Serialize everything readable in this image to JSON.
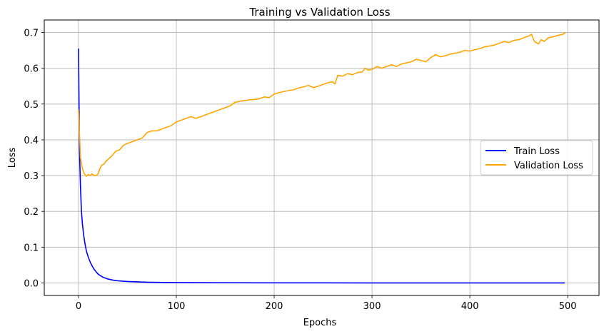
{
  "chart_data": {
    "type": "line",
    "title": "Training vs Validation Loss",
    "xlabel": "Epochs",
    "ylabel": "Loss",
    "xlim": [
      -35,
      532
    ],
    "ylim": [
      -0.035,
      0.735
    ],
    "xticks": [
      0,
      100,
      200,
      300,
      400,
      500
    ],
    "yticks": [
      0.0,
      0.1,
      0.2,
      0.3,
      0.4,
      0.5,
      0.6,
      0.7
    ],
    "grid": true,
    "legend_position": "center-right",
    "series": [
      {
        "name": "Train Loss",
        "color": "#0000ff",
        "x": [
          0,
          1,
          2,
          3,
          4,
          5,
          6,
          7,
          8,
          10,
          12,
          14,
          16,
          18,
          20,
          22,
          25,
          30,
          35,
          40,
          50,
          60,
          70,
          80,
          100,
          120,
          150,
          200,
          250,
          300,
          350,
          400,
          450,
          497
        ],
        "y": [
          0.655,
          0.37,
          0.27,
          0.2,
          0.165,
          0.14,
          0.12,
          0.104,
          0.09,
          0.072,
          0.058,
          0.047,
          0.038,
          0.031,
          0.025,
          0.021,
          0.016,
          0.011,
          0.008,
          0.006,
          0.004,
          0.003,
          0.002,
          0.0015,
          0.001,
          0.0008,
          0.0005,
          0.0003,
          0.0002,
          0.0001,
          0.0001,
          0.0001,
          0.0001,
          0.0001
        ]
      },
      {
        "name": "Validation Loss",
        "color": "#ffa500",
        "x": [
          0,
          2,
          4,
          6,
          8,
          10,
          12,
          14,
          16,
          18,
          20,
          22,
          24,
          26,
          28,
          30,
          34,
          38,
          42,
          46,
          50,
          55,
          60,
          65,
          70,
          75,
          80,
          85,
          90,
          95,
          100,
          105,
          110,
          115,
          120,
          125,
          130,
          135,
          140,
          145,
          150,
          155,
          160,
          165,
          170,
          175,
          180,
          185,
          190,
          195,
          200,
          205,
          210,
          215,
          220,
          225,
          230,
          235,
          240,
          245,
          250,
          255,
          260,
          262,
          265,
          270,
          275,
          280,
          285,
          290,
          293,
          296,
          300,
          305,
          310,
          315,
          320,
          325,
          330,
          335,
          340,
          345,
          350,
          355,
          360,
          365,
          370,
          375,
          380,
          385,
          390,
          395,
          400,
          405,
          410,
          415,
          420,
          425,
          430,
          435,
          440,
          445,
          450,
          455,
          460,
          463,
          466,
          470,
          473,
          476,
          480,
          485,
          490,
          495,
          498
        ],
        "y": [
          0.485,
          0.35,
          0.32,
          0.305,
          0.298,
          0.303,
          0.3,
          0.305,
          0.3,
          0.3,
          0.305,
          0.32,
          0.33,
          0.332,
          0.34,
          0.345,
          0.355,
          0.368,
          0.372,
          0.385,
          0.39,
          0.395,
          0.4,
          0.405,
          0.42,
          0.425,
          0.425,
          0.43,
          0.435,
          0.44,
          0.45,
          0.455,
          0.46,
          0.465,
          0.46,
          0.465,
          0.47,
          0.475,
          0.48,
          0.485,
          0.49,
          0.495,
          0.505,
          0.508,
          0.51,
          0.512,
          0.513,
          0.515,
          0.52,
          0.518,
          0.528,
          0.532,
          0.535,
          0.538,
          0.54,
          0.545,
          0.548,
          0.552,
          0.546,
          0.55,
          0.555,
          0.56,
          0.562,
          0.556,
          0.58,
          0.578,
          0.585,
          0.582,
          0.588,
          0.59,
          0.6,
          0.595,
          0.597,
          0.605,
          0.6,
          0.605,
          0.61,
          0.605,
          0.612,
          0.615,
          0.618,
          0.625,
          0.622,
          0.618,
          0.63,
          0.638,
          0.632,
          0.635,
          0.64,
          0.642,
          0.645,
          0.65,
          0.648,
          0.652,
          0.655,
          0.66,
          0.662,
          0.665,
          0.67,
          0.675,
          0.672,
          0.678,
          0.68,
          0.685,
          0.69,
          0.695,
          0.675,
          0.668,
          0.68,
          0.675,
          0.685,
          0.688,
          0.692,
          0.695,
          0.7
        ]
      }
    ]
  }
}
